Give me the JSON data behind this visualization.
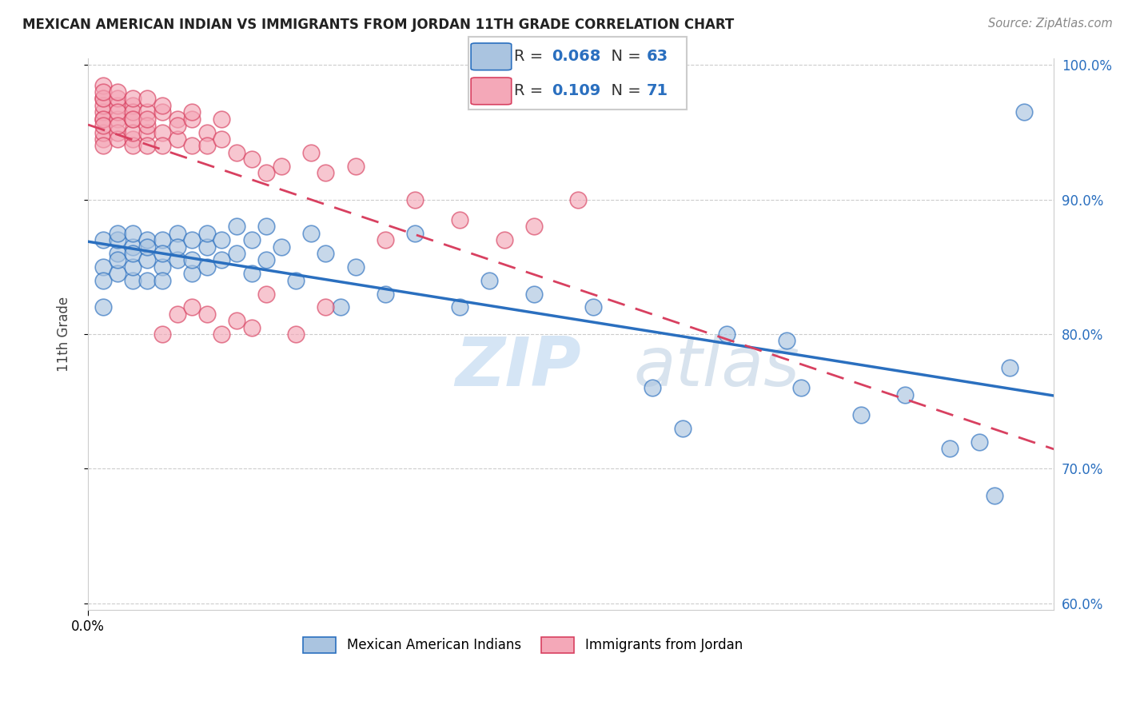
{
  "title": "MEXICAN AMERICAN INDIAN VS IMMIGRANTS FROM JORDAN 11TH GRADE CORRELATION CHART",
  "source": "Source: ZipAtlas.com",
  "ylabel": "11th Grade",
  "blue_label": "Mexican American Indians",
  "pink_label": "Immigrants from Jordan",
  "blue_R": 0.068,
  "blue_N": 63,
  "pink_R": 0.109,
  "pink_N": 71,
  "blue_color": "#aac4e0",
  "pink_color": "#f4a8b8",
  "blue_line_color": "#2a6fbf",
  "pink_line_color": "#d84060",
  "watermark_color": "#d5e5f5",
  "xlim": [
    0.0,
    0.065
  ],
  "ylim": [
    0.595,
    1.005
  ],
  "x_ticks": [
    0.0
  ],
  "x_tick_labels": [
    "0.0%"
  ],
  "y_ticks": [
    0.6,
    0.7,
    0.8,
    0.9,
    1.0
  ],
  "y_tick_labels": [
    "60.0%",
    "70.0%",
    "80.0%",
    "90.0%",
    "100.0%"
  ],
  "blue_x": [
    0.001,
    0.001,
    0.001,
    0.001,
    0.002,
    0.002,
    0.002,
    0.002,
    0.002,
    0.003,
    0.003,
    0.003,
    0.003,
    0.003,
    0.004,
    0.004,
    0.004,
    0.004,
    0.005,
    0.005,
    0.005,
    0.005,
    0.006,
    0.006,
    0.006,
    0.007,
    0.007,
    0.007,
    0.008,
    0.008,
    0.008,
    0.009,
    0.009,
    0.01,
    0.01,
    0.011,
    0.011,
    0.012,
    0.012,
    0.013,
    0.014,
    0.015,
    0.016,
    0.017,
    0.018,
    0.02,
    0.022,
    0.025,
    0.027,
    0.03,
    0.034,
    0.038,
    0.04,
    0.043,
    0.048,
    0.052,
    0.06,
    0.062,
    0.063,
    0.047,
    0.055,
    0.058,
    0.061
  ],
  "blue_y": [
    0.85,
    0.87,
    0.82,
    0.84,
    0.86,
    0.845,
    0.87,
    0.855,
    0.875,
    0.865,
    0.84,
    0.875,
    0.85,
    0.86,
    0.87,
    0.855,
    0.84,
    0.865,
    0.85,
    0.87,
    0.84,
    0.86,
    0.875,
    0.855,
    0.865,
    0.845,
    0.87,
    0.855,
    0.865,
    0.875,
    0.85,
    0.87,
    0.855,
    0.88,
    0.86,
    0.87,
    0.845,
    0.855,
    0.88,
    0.865,
    0.84,
    0.875,
    0.86,
    0.82,
    0.85,
    0.83,
    0.875,
    0.82,
    0.84,
    0.83,
    0.82,
    0.76,
    0.73,
    0.8,
    0.76,
    0.74,
    0.72,
    0.775,
    0.965,
    0.795,
    0.755,
    0.715,
    0.68
  ],
  "pink_x": [
    0.001,
    0.001,
    0.001,
    0.001,
    0.001,
    0.001,
    0.001,
    0.001,
    0.001,
    0.001,
    0.001,
    0.001,
    0.002,
    0.002,
    0.002,
    0.002,
    0.002,
    0.002,
    0.002,
    0.002,
    0.003,
    0.003,
    0.003,
    0.003,
    0.003,
    0.003,
    0.003,
    0.003,
    0.004,
    0.004,
    0.004,
    0.004,
    0.004,
    0.004,
    0.005,
    0.005,
    0.005,
    0.005,
    0.006,
    0.006,
    0.006,
    0.007,
    0.007,
    0.007,
    0.008,
    0.008,
    0.009,
    0.009,
    0.01,
    0.011,
    0.012,
    0.013,
    0.015,
    0.016,
    0.018,
    0.02,
    0.022,
    0.025,
    0.028,
    0.03,
    0.033,
    0.012,
    0.014,
    0.016,
    0.005,
    0.006,
    0.007,
    0.008,
    0.009,
    0.01,
    0.011
  ],
  "pink_y": [
    0.975,
    0.985,
    0.96,
    0.965,
    0.945,
    0.97,
    0.975,
    0.95,
    0.96,
    0.94,
    0.98,
    0.955,
    0.96,
    0.97,
    0.975,
    0.95,
    0.945,
    0.965,
    0.98,
    0.955,
    0.96,
    0.945,
    0.97,
    0.965,
    0.94,
    0.95,
    0.975,
    0.96,
    0.95,
    0.94,
    0.965,
    0.975,
    0.955,
    0.96,
    0.95,
    0.94,
    0.965,
    0.97,
    0.945,
    0.96,
    0.955,
    0.94,
    0.96,
    0.965,
    0.95,
    0.94,
    0.96,
    0.945,
    0.935,
    0.93,
    0.92,
    0.925,
    0.935,
    0.92,
    0.925,
    0.87,
    0.9,
    0.885,
    0.87,
    0.88,
    0.9,
    0.83,
    0.8,
    0.82,
    0.8,
    0.815,
    0.82,
    0.815,
    0.8,
    0.81,
    0.805
  ]
}
